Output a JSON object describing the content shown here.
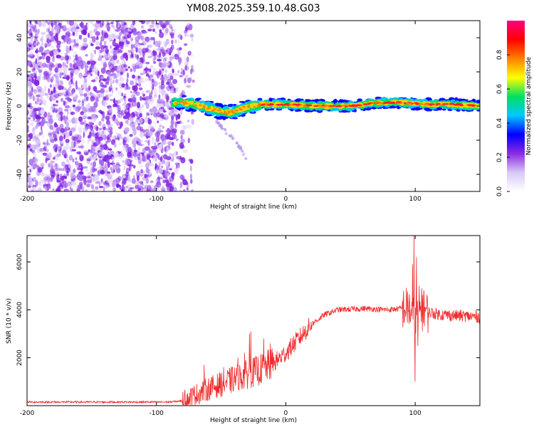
{
  "title": "YM08.2025.359.10.48.G03",
  "chart_data": [
    {
      "type": "heatmap",
      "name": "spectrogram",
      "xlabel": "Height of straight line (km)",
      "ylabel": "Frequency (Hz)",
      "xlim": [
        -200,
        150
      ],
      "ylim": [
        -50,
        50
      ],
      "xticks": [
        -200,
        -100,
        0,
        100
      ],
      "yticks": [
        -40,
        -20,
        0,
        20,
        40
      ],
      "noise_region_x": [
        -200,
        -77
      ],
      "signal_start_x": -87,
      "signal_ridge": {
        "x": [
          -87,
          -80,
          -70,
          -60,
          -52,
          -45,
          -38,
          -32,
          -25,
          -20,
          -10,
          0,
          20,
          50,
          70,
          90,
          110,
          130,
          150
        ],
        "y": [
          2,
          2,
          1,
          -1,
          -3,
          -4,
          -3,
          -1,
          0,
          1,
          1,
          1,
          0,
          0,
          2,
          2,
          1,
          1,
          0
        ]
      },
      "faint_branch": {
        "x": [
          -55,
          -50,
          -45,
          -40,
          -35,
          -30
        ],
        "y": [
          -8,
          -12,
          -16,
          -20,
          -25,
          -31
        ]
      },
      "colorbar": {
        "label": "Normalized spectral amplitude",
        "ticks": [
          0.0,
          0.2,
          0.4,
          0.6,
          0.8
        ],
        "range": [
          0.0,
          1.0
        ],
        "colors": [
          "#ffffff",
          "#d8c8f8",
          "#8a2be2",
          "#0000ff",
          "#00c8ff",
          "#00e060",
          "#ffff00",
          "#ff8000",
          "#ff0000",
          "#ff0080"
        ]
      }
    },
    {
      "type": "line",
      "name": "snr",
      "xlabel": "Height of straight line (km)",
      "ylabel": "SNR (10 * v/v)",
      "xlim": [
        -200,
        150
      ],
      "ylim": [
        0,
        7100
      ],
      "xticks": [
        -200,
        -100,
        0,
        100
      ],
      "yticks": [
        2000,
        4000,
        6000
      ],
      "color": "#ef2b2b",
      "envelope": {
        "x": [
          -200,
          -90,
          -80,
          -70,
          -60,
          -50,
          -40,
          -30,
          -20,
          -10,
          0,
          10,
          20,
          30,
          40,
          60,
          80,
          95,
          100,
          105,
          110,
          120,
          150
        ],
        "y": [
          150,
          150,
          200,
          450,
          700,
          900,
          1100,
          1300,
          1500,
          1750,
          2200,
          2800,
          3400,
          3800,
          4000,
          4050,
          4000,
          4100,
          3500,
          4000,
          3900,
          3800,
          3700
        ]
      },
      "spikes": {
        "x": [
          -63,
          -48,
          -37,
          -32,
          -28,
          -27,
          -17,
          -12,
          98,
          99,
          100,
          101,
          102,
          103,
          105,
          107
        ],
        "y": [
          1700,
          1600,
          2000,
          2200,
          3000,
          3100,
          2800,
          2600,
          5900,
          7100,
          1000,
          6200,
          2500,
          5000,
          4900,
          4600
        ]
      }
    }
  ]
}
